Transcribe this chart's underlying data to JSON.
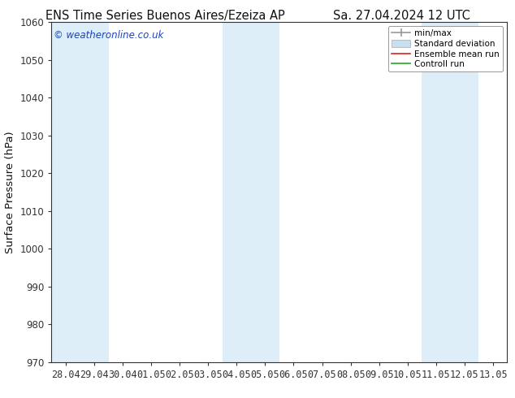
{
  "title_left": "ENS Time Series Buenos Aires/Ezeiza AP",
  "title_right": "Sa. 27.04.2024 12 UTC",
  "ylabel": "Surface Pressure (hPa)",
  "ylim": [
    970,
    1060
  ],
  "yticks": [
    970,
    980,
    990,
    1000,
    1010,
    1020,
    1030,
    1040,
    1050,
    1060
  ],
  "x_labels": [
    "28.04",
    "29.04",
    "30.04",
    "01.05",
    "02.05",
    "03.05",
    "04.05",
    "05.05",
    "06.05",
    "07.05",
    "08.05",
    "09.05",
    "10.05",
    "11.05",
    "12.05",
    "13.05"
  ],
  "x_positions": [
    0,
    1,
    2,
    3,
    4,
    5,
    6,
    7,
    8,
    9,
    10,
    11,
    12,
    13,
    14,
    15
  ],
  "shaded_columns": [
    0,
    1,
    6,
    7,
    13,
    14
  ],
  "shade_color": "#ddeef8",
  "bg_color": "#ffffff",
  "watermark": "© weatheronline.co.uk",
  "watermark_color": "#1a44bb",
  "legend_labels": [
    "min/max",
    "Standard deviation",
    "Ensemble mean run",
    "Controll run"
  ],
  "legend_colors": [
    "#999999",
    "#c8dff0",
    "#dd2222",
    "#22aa22"
  ],
  "title_fontsize": 10.5,
  "tick_fontsize": 8.5,
  "ylabel_fontsize": 9.5
}
